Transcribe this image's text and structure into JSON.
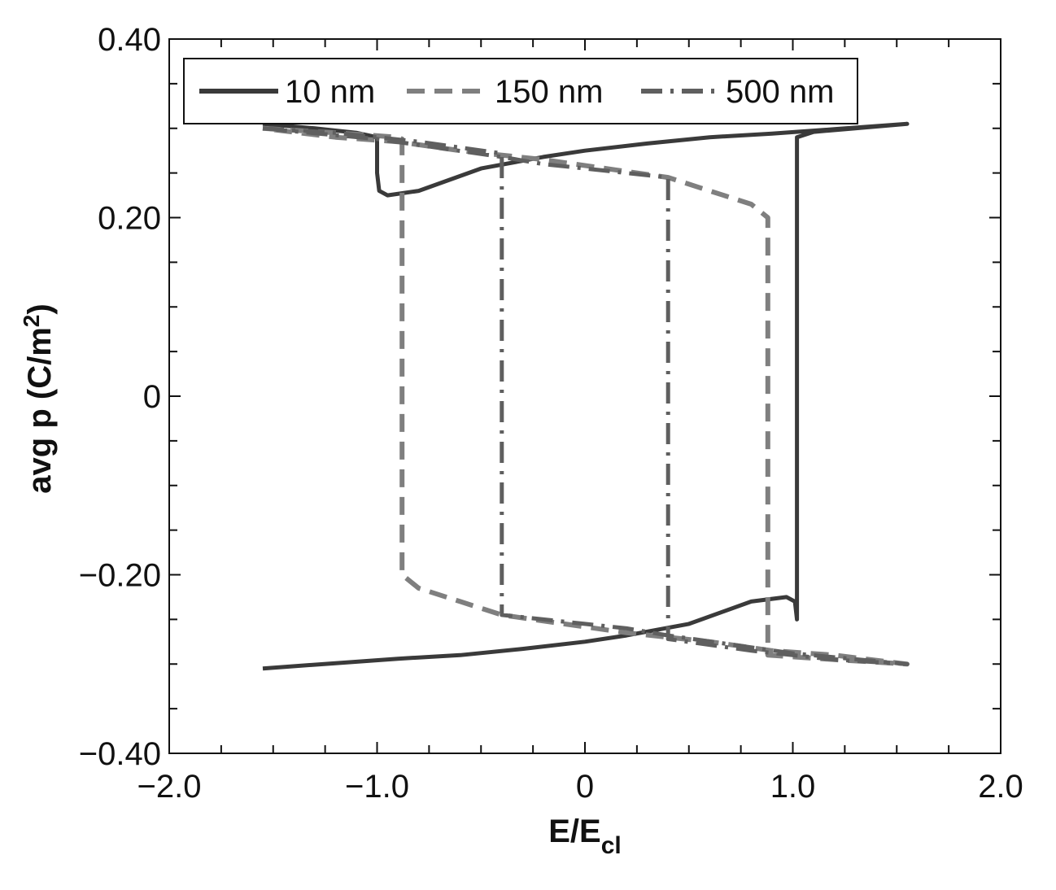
{
  "chart_data": {
    "type": "line",
    "xlabel_main": "E/E",
    "xlabel_sub": "cl",
    "ylabel_main": "avg p (C/m",
    "ylabel_sup": "2",
    "ylabel_close": ")",
    "xlim": [
      -2.0,
      2.0
    ],
    "ylim": [
      -0.4,
      0.4
    ],
    "xticks": [
      {
        "value": -2.0,
        "label": "−2.0"
      },
      {
        "value": -1.0,
        "label": "−1.0"
      },
      {
        "value": 0,
        "label": "0"
      },
      {
        "value": 1.0,
        "label": "1.0"
      },
      {
        "value": 2.0,
        "label": "2.0"
      }
    ],
    "yticks": [
      {
        "value": 0.4,
        "label": "0.40"
      },
      {
        "value": 0.2,
        "label": "0.20"
      },
      {
        "value": 0,
        "label": "0"
      },
      {
        "value": -0.2,
        "label": "−0.20"
      },
      {
        "value": -0.4,
        "label": "−0.40"
      }
    ],
    "x_minor_step": 0.25,
    "y_minor_step": 0.05,
    "grid": false,
    "legend_position": "top",
    "series": [
      {
        "name": "10 nm",
        "color": "#3a3a3a",
        "dash": "solid",
        "x": [
          -1.55,
          -1.3,
          -1.1,
          -1.0,
          -1.0,
          -0.99,
          -0.95,
          -0.8,
          -0.5,
          -0.2,
          0.0,
          0.3,
          0.6,
          0.9,
          1.2,
          1.55,
          1.3,
          1.1,
          1.02,
          1.02,
          1.01,
          0.97,
          0.8,
          0.5,
          0.2,
          0.0,
          -0.3,
          -0.6,
          -0.9,
          -1.2,
          -1.55
        ],
        "y": [
          0.305,
          0.3,
          0.295,
          0.29,
          0.25,
          0.23,
          0.225,
          0.23,
          0.255,
          0.268,
          0.275,
          0.283,
          0.29,
          0.294,
          0.299,
          0.305,
          0.3,
          0.296,
          0.29,
          -0.25,
          -0.23,
          -0.225,
          -0.23,
          -0.255,
          -0.268,
          -0.275,
          -0.283,
          -0.29,
          -0.294,
          -0.299,
          -0.305
        ]
      },
      {
        "name": "150 nm",
        "color": "#7f7f7f",
        "dash": "dashed",
        "x": [
          -1.55,
          -1.2,
          -0.9,
          -0.88,
          -0.88,
          -0.8,
          -0.6,
          -0.4,
          -0.1,
          0.2,
          0.6,
          0.9,
          1.2,
          1.55,
          1.2,
          0.88,
          0.88,
          0.8,
          0.6,
          0.4,
          0.1,
          -0.2,
          -0.6,
          -0.9,
          -1.2,
          -1.55
        ],
        "y": [
          0.3,
          0.295,
          0.29,
          0.288,
          -0.2,
          -0.215,
          -0.23,
          -0.245,
          -0.255,
          -0.265,
          -0.275,
          -0.285,
          -0.29,
          -0.3,
          -0.295,
          -0.29,
          0.2,
          0.215,
          0.23,
          0.245,
          0.255,
          0.265,
          0.275,
          0.285,
          0.29,
          0.3
        ]
      },
      {
        "name": "500 nm",
        "color": "#5f5f5f",
        "dash": "dashdot",
        "x": [
          -1.55,
          -1.2,
          -0.8,
          -0.4,
          -0.4,
          -0.2,
          0.0,
          0.2,
          0.4,
          0.7,
          1.0,
          1.55,
          1.2,
          0.8,
          0.4,
          0.4,
          0.2,
          0.0,
          -0.2,
          -0.4,
          -0.7,
          -1.0,
          -1.55
        ],
        "y": [
          0.3,
          0.295,
          0.285,
          0.272,
          -0.245,
          -0.25,
          -0.255,
          -0.26,
          -0.268,
          -0.278,
          -0.288,
          -0.3,
          -0.295,
          -0.285,
          -0.272,
          0.245,
          0.25,
          0.255,
          0.26,
          0.268,
          0.278,
          0.288,
          0.3
        ]
      }
    ]
  }
}
